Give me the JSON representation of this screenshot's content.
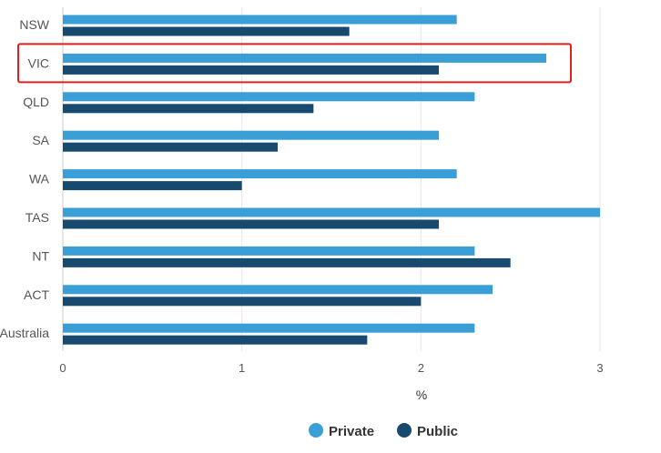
{
  "chart_data": {
    "type": "bar",
    "orientation": "horizontal",
    "categories": [
      "NSW",
      "VIC",
      "QLD",
      "SA",
      "WA",
      "TAS",
      "NT",
      "ACT",
      "Australia"
    ],
    "series": [
      {
        "name": "Private",
        "color": "#3a9fd6",
        "values": [
          2.2,
          2.7,
          2.3,
          2.1,
          2.2,
          3.0,
          2.3,
          2.4,
          2.3
        ]
      },
      {
        "name": "Public",
        "color": "#174a6e",
        "values": [
          1.6,
          2.1,
          1.4,
          1.2,
          1.0,
          2.1,
          2.5,
          2.0,
          1.7
        ]
      }
    ],
    "xlabel": "%",
    "xlim": [
      0,
      3
    ],
    "xticks": [
      "0",
      "1",
      "2",
      "3"
    ],
    "grid": "vertical",
    "legend_position": "bottom-center",
    "highlighted_category": "VIC",
    "highlight_color": "#e0201b"
  }
}
